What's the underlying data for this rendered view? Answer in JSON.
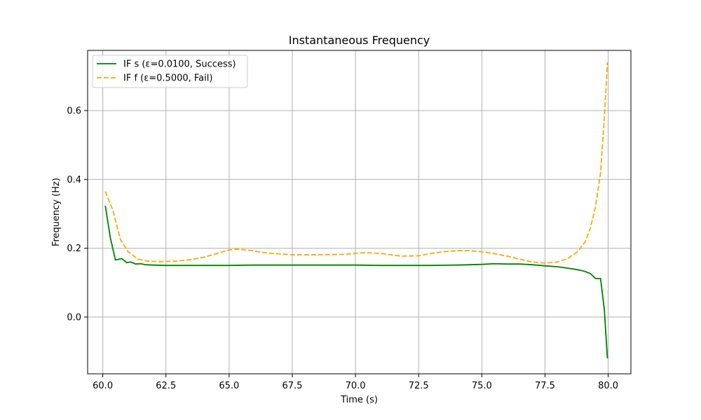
{
  "chart_data": {
    "type": "line",
    "title": "Instantaneous Frequency",
    "xlabel": "Time (s)",
    "ylabel": "Frequency (Hz)",
    "xlim": [
      59.4,
      80.9
    ],
    "ylim": [
      -0.165,
      0.775
    ],
    "xticks": [
      60.0,
      62.5,
      65.0,
      67.5,
      70.0,
      72.5,
      75.0,
      77.5,
      80.0
    ],
    "xtick_labels": [
      "60.0",
      "62.5",
      "65.0",
      "67.5",
      "70.0",
      "72.5",
      "75.0",
      "77.5",
      "80.0"
    ],
    "yticks": [
      0.0,
      0.2,
      0.4,
      0.6
    ],
    "ytick_labels": [
      "0.0",
      "0.2",
      "0.4",
      "0.6"
    ],
    "grid": true,
    "legend_position": "upper-left",
    "series": [
      {
        "name": "IF s (ε=0.0100, Success)",
        "color": "#008000",
        "linestyle": "solid",
        "x": [
          60.1,
          60.3,
          60.5,
          60.75,
          60.95,
          61.1,
          61.3,
          61.5,
          61.7,
          62.0,
          62.5,
          63.0,
          63.5,
          64.0,
          64.5,
          65.0,
          66.0,
          67.0,
          68.0,
          69.0,
          70.0,
          71.0,
          72.0,
          73.0,
          74.0,
          75.0,
          75.5,
          76.0,
          76.5,
          77.0,
          77.5,
          78.0,
          78.3,
          78.6,
          78.9,
          79.1,
          79.3,
          79.5,
          79.7,
          79.85,
          79.97
        ],
        "y": [
          0.323,
          0.23,
          0.166,
          0.17,
          0.158,
          0.16,
          0.154,
          0.155,
          0.152,
          0.151,
          0.15,
          0.15,
          0.15,
          0.15,
          0.15,
          0.15,
          0.151,
          0.151,
          0.151,
          0.151,
          0.151,
          0.15,
          0.15,
          0.15,
          0.151,
          0.153,
          0.155,
          0.154,
          0.154,
          0.152,
          0.149,
          0.146,
          0.143,
          0.14,
          0.136,
          0.132,
          0.126,
          0.112,
          0.112,
          0.02,
          -0.12
        ]
      },
      {
        "name": "IF f (ε=0.5000, Fail)",
        "color": "#FFA500",
        "linestyle": "dashed",
        "x": [
          60.1,
          60.4,
          60.7,
          61.0,
          61.4,
          61.8,
          62.3,
          63.0,
          63.5,
          64.0,
          64.5,
          65.0,
          65.3,
          65.8,
          66.5,
          67.5,
          68.5,
          69.5,
          70.3,
          71.0,
          71.8,
          72.5,
          73.0,
          73.5,
          74.0,
          74.5,
          75.0,
          75.5,
          76.0,
          76.5,
          77.0,
          77.5,
          78.0,
          78.4,
          78.8,
          79.1,
          79.3,
          79.5,
          79.7,
          79.85,
          79.97
        ],
        "y": [
          0.365,
          0.31,
          0.225,
          0.19,
          0.168,
          0.162,
          0.161,
          0.163,
          0.167,
          0.174,
          0.184,
          0.195,
          0.197,
          0.194,
          0.186,
          0.181,
          0.181,
          0.182,
          0.187,
          0.185,
          0.177,
          0.178,
          0.185,
          0.19,
          0.193,
          0.193,
          0.19,
          0.184,
          0.177,
          0.168,
          0.16,
          0.157,
          0.16,
          0.17,
          0.19,
          0.22,
          0.26,
          0.32,
          0.42,
          0.58,
          0.74
        ]
      }
    ]
  }
}
